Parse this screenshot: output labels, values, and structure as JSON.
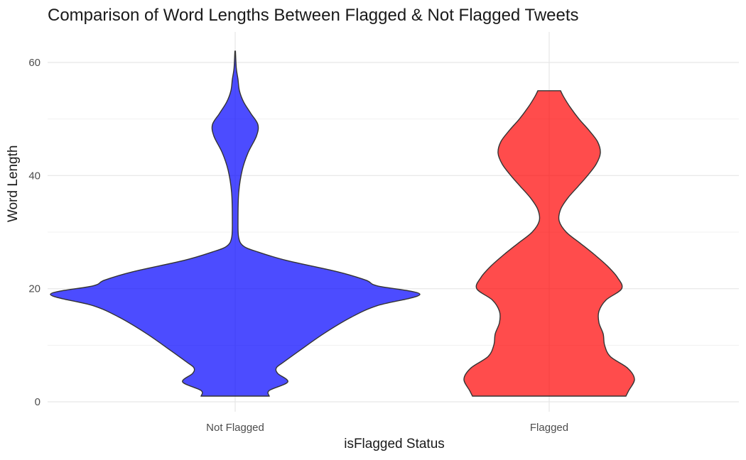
{
  "chart_data": {
    "type": "violin",
    "title": "Comparison of Word Lengths Between Flagged & Not Flagged Tweets",
    "xlabel": "isFlagged Status",
    "ylabel": "Word Length",
    "categories": [
      "Not Flagged",
      "Flagged"
    ],
    "ylim": [
      -0.5,
      65
    ],
    "yticks": [
      0,
      20,
      40,
      60
    ],
    "grid": true,
    "colors": {
      "Not Flagged": "#0000FF",
      "Flagged": "#FF0000"
    },
    "series": [
      {
        "category": "Not Flagged",
        "y_min": 1,
        "y_max": 62,
        "density_profile": [
          {
            "y": 1,
            "width": 0.24
          },
          {
            "y": 2,
            "width": 0.24
          },
          {
            "y": 3.5,
            "width": 0.37
          },
          {
            "y": 5,
            "width": 0.3
          },
          {
            "y": 6,
            "width": 0.29
          },
          {
            "y": 7,
            "width": 0.34
          },
          {
            "y": 9,
            "width": 0.45
          },
          {
            "y": 12,
            "width": 0.62
          },
          {
            "y": 15,
            "width": 0.82
          },
          {
            "y": 17,
            "width": 1.0
          },
          {
            "y": 19,
            "width": 1.3
          },
          {
            "y": 20.5,
            "width": 1.0
          },
          {
            "y": 21.5,
            "width": 0.92
          },
          {
            "y": 23,
            "width": 0.72
          },
          {
            "y": 25,
            "width": 0.36
          },
          {
            "y": 26.5,
            "width": 0.16
          },
          {
            "y": 27.5,
            "width": 0.06
          },
          {
            "y": 29,
            "width": 0.025
          },
          {
            "y": 32,
            "width": 0.02
          },
          {
            "y": 37,
            "width": 0.025
          },
          {
            "y": 41,
            "width": 0.05
          },
          {
            "y": 44,
            "width": 0.09
          },
          {
            "y": 47,
            "width": 0.15
          },
          {
            "y": 49,
            "width": 0.16
          },
          {
            "y": 51,
            "width": 0.11
          },
          {
            "y": 53,
            "width": 0.06
          },
          {
            "y": 55,
            "width": 0.03
          },
          {
            "y": 57,
            "width": 0.02
          },
          {
            "y": 59,
            "width": 0.008
          },
          {
            "y": 62,
            "width": 0.002
          }
        ]
      },
      {
        "category": "Flagged",
        "y_min": 1,
        "y_max": 55,
        "density_profile": [
          {
            "y": 1,
            "width": 0.54
          },
          {
            "y": 2,
            "width": 0.56
          },
          {
            "y": 4,
            "width": 0.6
          },
          {
            "y": 6,
            "width": 0.55
          },
          {
            "y": 8,
            "width": 0.43
          },
          {
            "y": 10,
            "width": 0.39
          },
          {
            "y": 12,
            "width": 0.38
          },
          {
            "y": 14,
            "width": 0.35
          },
          {
            "y": 16,
            "width": 0.35
          },
          {
            "y": 18,
            "width": 0.4
          },
          {
            "y": 20,
            "width": 0.51
          },
          {
            "y": 22,
            "width": 0.48
          },
          {
            "y": 24,
            "width": 0.41
          },
          {
            "y": 26,
            "width": 0.32
          },
          {
            "y": 28,
            "width": 0.22
          },
          {
            "y": 30,
            "width": 0.12
          },
          {
            "y": 32,
            "width": 0.07
          },
          {
            "y": 34,
            "width": 0.08
          },
          {
            "y": 36,
            "width": 0.13
          },
          {
            "y": 38,
            "width": 0.2
          },
          {
            "y": 40,
            "width": 0.27
          },
          {
            "y": 42,
            "width": 0.33
          },
          {
            "y": 44,
            "width": 0.36
          },
          {
            "y": 46,
            "width": 0.34
          },
          {
            "y": 48,
            "width": 0.28
          },
          {
            "y": 50,
            "width": 0.21
          },
          {
            "y": 52,
            "width": 0.15
          },
          {
            "y": 54,
            "width": 0.1
          },
          {
            "y": 55,
            "width": 0.08
          }
        ]
      }
    ]
  }
}
